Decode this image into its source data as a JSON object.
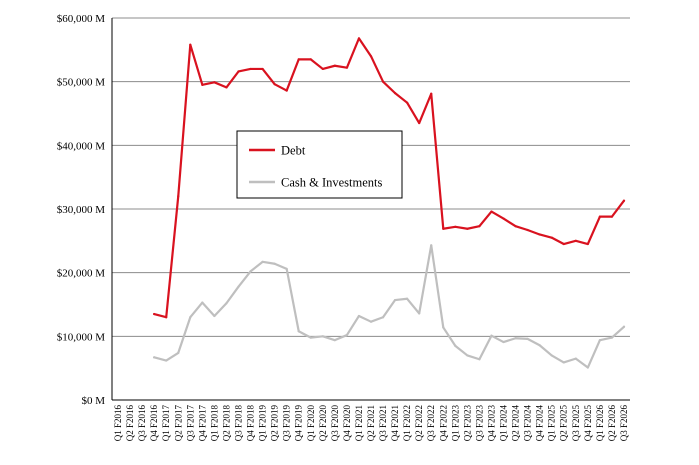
{
  "chart_data": {
    "type": "line",
    "title": "",
    "xlabel": "",
    "ylabel": "",
    "ylim": [
      0,
      60000
    ],
    "y_ticks": [
      {
        "value": 0,
        "label": "$0 M"
      },
      {
        "value": 10000,
        "label": "$10,000 M"
      },
      {
        "value": 20000,
        "label": "$20,000 M"
      },
      {
        "value": 30000,
        "label": "$30,000 M"
      },
      {
        "value": 40000,
        "label": "$40,000 M"
      },
      {
        "value": 50000,
        "label": "$50,000 M"
      },
      {
        "value": 60000,
        "label": "$60,000 M"
      }
    ],
    "grid": "horizontal",
    "legend_position": "center",
    "categories": [
      "Q1 F2016",
      "Q2 F2016",
      "Q3 F2016",
      "Q4 F2016",
      "Q1 F2017",
      "Q2 F2017",
      "Q3 F2017",
      "Q4 F2017",
      "Q1 F2018",
      "Q2 F2018",
      "Q3 F2018",
      "Q4 F2018",
      "Q1 F2019",
      "Q2 F2019",
      "Q3 F2019",
      "Q4 F2019",
      "Q1 F2020",
      "Q2 F2020",
      "Q3 F2020",
      "Q4 F2020",
      "Q1 F2021",
      "Q2 F2021",
      "Q3 F2021",
      "Q4 F2021",
      "Q1 F2022",
      "Q2 F2022",
      "Q3 F2022",
      "Q4 F2022",
      "Q1 F2023",
      "Q2 F2023",
      "Q3 F2023",
      "Q4 F2023",
      "Q1 F2024",
      "Q2 F2024",
      "Q3 F2024",
      "Q4 F2024",
      "Q1 F2025",
      "Q2 F2025",
      "Q3 F2025",
      "Q4 F2025",
      "Q1 F2026",
      "Q2 F2026",
      "Q3 F2026"
    ],
    "series": [
      {
        "name": "Debt",
        "color": "#d9121f",
        "values": [
          null,
          null,
          null,
          13500,
          13000,
          32000,
          55800,
          49500,
          49900,
          49100,
          51600,
          52000,
          52000,
          49600,
          48600,
          53500,
          53500,
          52000,
          52500,
          52200,
          56800,
          54000,
          50000,
          48200,
          46700,
          43500,
          48100,
          26900,
          27200,
          26900,
          27300,
          29600,
          28500,
          27300,
          26700,
          26000,
          25500,
          24500,
          25000,
          24500,
          28800,
          28800,
          31300
        ]
      },
      {
        "name": "Cash & Investments",
        "color": "#bfbfbf",
        "values": [
          null,
          null,
          null,
          6700,
          6200,
          7400,
          13000,
          15300,
          13200,
          15200,
          17800,
          20200,
          21700,
          21400,
          20600,
          10800,
          9800,
          10000,
          9400,
          10200,
          13200,
          12300,
          13000,
          15700,
          15900,
          13600,
          24300,
          11400,
          8500,
          7000,
          6400,
          10100,
          9100,
          9700,
          9600,
          8600,
          7000,
          5900,
          6500,
          5100,
          9400,
          9800,
          11500
        ]
      }
    ]
  }
}
